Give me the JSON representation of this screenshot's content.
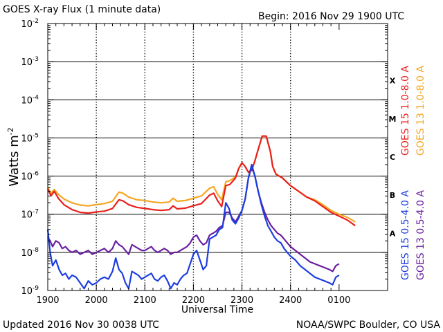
{
  "chart_data": {
    "type": "line",
    "title": "GOES X-ray Flux (1 minute data)",
    "begin_label": "Begin: 2016 Nov 29 1900 UTC",
    "xlabel": "Universal Time",
    "ylabel": "Watts m",
    "ylabel_superscript": "-2",
    "yscale": "log",
    "x_ticks": [
      "1900",
      "2000",
      "2100",
      "2200",
      "2300",
      "2400",
      "0100"
    ],
    "y_ticks": [
      {
        "base": "10",
        "exp": "-9"
      },
      {
        "base": "10",
        "exp": "-8"
      },
      {
        "base": "10",
        "exp": "-7"
      },
      {
        "base": "10",
        "exp": "-6"
      },
      {
        "base": "10",
        "exp": "-5"
      },
      {
        "base": "10",
        "exp": "-4"
      },
      {
        "base": "10",
        "exp": "-3"
      },
      {
        "base": "10",
        "exp": "-2"
      }
    ],
    "flare_classes": [
      "A",
      "B",
      "C",
      "M",
      "X"
    ],
    "x_unit_note": "x = minutes after 2016 Nov 29 1900 UTC",
    "ylim_log10": [
      -9,
      -2
    ],
    "series": [
      {
        "name": "GOES 15 1.0-8.0 A",
        "color": "#e8201c",
        "x": [
          0,
          4,
          8,
          13,
          20,
          30,
          40,
          50,
          60,
          70,
          80,
          88,
          93,
          100,
          110,
          120,
          130,
          140,
          150,
          155,
          160,
          170,
          180,
          190,
          200,
          205,
          210,
          215,
          220,
          225,
          230,
          232,
          236,
          240,
          244,
          248,
          252,
          256,
          260,
          265,
          270,
          275,
          278,
          282,
          286,
          290,
          300,
          310,
          320,
          330,
          340,
          350,
          360,
          370,
          380
        ],
        "y": [
          -6.34,
          -6.52,
          -6.4,
          -6.58,
          -6.75,
          -6.88,
          -6.95,
          -6.97,
          -6.94,
          -6.92,
          -6.85,
          -6.62,
          -6.65,
          -6.75,
          -6.82,
          -6.85,
          -6.88,
          -6.9,
          -6.88,
          -6.78,
          -6.86,
          -6.84,
          -6.78,
          -6.72,
          -6.5,
          -6.45,
          -6.65,
          -6.8,
          -6.25,
          -6.22,
          -6.1,
          -6.05,
          -5.8,
          -5.65,
          -5.75,
          -5.9,
          -5.85,
          -5.6,
          -5.3,
          -4.95,
          -4.95,
          -5.35,
          -5.75,
          -5.95,
          -6.0,
          -6.05,
          -6.25,
          -6.4,
          -6.55,
          -6.65,
          -6.8,
          -6.95,
          -7.05,
          -7.15,
          -7.3
        ]
      },
      {
        "name": "GOES 13 1.0-8.0 A",
        "color": "#f5a623",
        "x": [
          0,
          4,
          8,
          13,
          20,
          30,
          40,
          50,
          60,
          70,
          80,
          88,
          93,
          100,
          110,
          120,
          130,
          140,
          150,
          155,
          160,
          170,
          180,
          190,
          200,
          205,
          210,
          215,
          220,
          225,
          230,
          232,
          236,
          240,
          244,
          248,
          252,
          256,
          260,
          265,
          270,
          275,
          278,
          282,
          286,
          290,
          300,
          310,
          320,
          330,
          340,
          350,
          360,
          370,
          380
        ],
        "y": [
          -6.3,
          -6.45,
          -6.35,
          -6.48,
          -6.6,
          -6.7,
          -6.76,
          -6.78,
          -6.75,
          -6.72,
          -6.66,
          -6.42,
          -6.45,
          -6.55,
          -6.62,
          -6.64,
          -6.68,
          -6.7,
          -6.68,
          -6.58,
          -6.66,
          -6.64,
          -6.58,
          -6.52,
          -6.32,
          -6.28,
          -6.48,
          -6.62,
          -6.15,
          -6.12,
          -6.05,
          -6.02,
          -5.8,
          -5.65,
          -5.75,
          -5.9,
          -5.85,
          -5.6,
          -5.3,
          -4.95,
          -4.95,
          -5.35,
          -5.75,
          -5.95,
          -6.0,
          -6.05,
          -6.25,
          -6.4,
          -6.55,
          -6.62,
          -6.75,
          -6.9,
          -7.0,
          -7.08,
          -7.2
        ]
      },
      {
        "name": "GOES 15 0.5-4.0 A",
        "color": "#1c3ee0",
        "x": [
          0,
          3,
          6,
          10,
          14,
          18,
          22,
          26,
          30,
          35,
          40,
          45,
          50,
          55,
          60,
          65,
          70,
          75,
          80,
          84,
          88,
          92,
          96,
          100,
          104,
          108,
          112,
          116,
          120,
          124,
          128,
          132,
          136,
          140,
          144,
          148,
          152,
          156,
          160,
          164,
          168,
          172,
          176,
          180,
          184,
          188,
          192,
          196,
          200,
          204,
          208,
          212,
          216,
          220,
          224,
          228,
          232,
          236,
          240,
          244,
          248,
          252,
          256,
          260,
          264,
          268,
          272,
          276,
          280,
          284,
          288,
          292,
          296,
          300,
          306,
          312,
          318,
          324,
          330,
          336,
          342,
          348,
          352,
          356,
          360
        ],
        "y": [
          -7.4,
          -8.0,
          -8.35,
          -8.2,
          -8.45,
          -8.6,
          -8.55,
          -8.7,
          -8.6,
          -8.65,
          -8.8,
          -8.95,
          -8.75,
          -8.85,
          -8.8,
          -8.7,
          -8.65,
          -8.7,
          -8.5,
          -8.15,
          -8.45,
          -8.55,
          -8.8,
          -8.95,
          -8.5,
          -8.55,
          -8.6,
          -8.7,
          -8.65,
          -8.6,
          -8.55,
          -8.7,
          -8.75,
          -8.65,
          -8.6,
          -8.75,
          -8.95,
          -8.8,
          -8.85,
          -8.7,
          -8.6,
          -8.55,
          -8.3,
          -8.05,
          -7.95,
          -8.2,
          -8.45,
          -8.35,
          -7.65,
          -7.6,
          -7.55,
          -7.4,
          -7.35,
          -6.7,
          -6.85,
          -7.15,
          -7.25,
          -7.1,
          -6.9,
          -6.6,
          -6.05,
          -5.7,
          -6.0,
          -6.4,
          -6.75,
          -7.05,
          -7.3,
          -7.45,
          -7.6,
          -7.7,
          -7.75,
          -7.9,
          -8.0,
          -8.1,
          -8.2,
          -8.35,
          -8.45,
          -8.55,
          -8.65,
          -8.7,
          -8.75,
          -8.8,
          -8.85,
          -8.65,
          -8.6
        ]
      },
      {
        "name": "GOES 13 0.5-4.0 A",
        "color": "#6a1fa0",
        "x": [
          0,
          3,
          6,
          10,
          14,
          18,
          22,
          26,
          30,
          35,
          40,
          45,
          50,
          55,
          60,
          65,
          70,
          75,
          80,
          84,
          88,
          92,
          96,
          100,
          104,
          108,
          112,
          116,
          120,
          124,
          128,
          132,
          136,
          140,
          144,
          148,
          152,
          156,
          160,
          164,
          168,
          172,
          176,
          180,
          184,
          188,
          192,
          196,
          200,
          204,
          208,
          212,
          216,
          220,
          224,
          228,
          232,
          236,
          240,
          244,
          248,
          252,
          256,
          260,
          264,
          268,
          272,
          276,
          280,
          284,
          288,
          292,
          296,
          300,
          306,
          312,
          318,
          324,
          330,
          336,
          342,
          348,
          352,
          356,
          360
        ],
        "y": [
          -7.6,
          -7.7,
          -7.85,
          -7.7,
          -7.75,
          -7.9,
          -7.85,
          -7.95,
          -8.0,
          -7.95,
          -8.05,
          -8.0,
          -7.95,
          -8.05,
          -8.0,
          -7.95,
          -7.9,
          -8.0,
          -7.9,
          -7.7,
          -7.8,
          -7.85,
          -7.95,
          -8.05,
          -7.8,
          -7.85,
          -7.9,
          -7.95,
          -7.95,
          -7.9,
          -7.85,
          -7.95,
          -8.0,
          -7.95,
          -7.9,
          -7.95,
          -8.05,
          -8.0,
          -8.0,
          -7.95,
          -7.9,
          -7.85,
          -7.75,
          -7.6,
          -7.55,
          -7.7,
          -7.8,
          -7.75,
          -7.55,
          -7.5,
          -7.45,
          -7.35,
          -7.3,
          -6.95,
          -6.95,
          -7.1,
          -7.2,
          -7.05,
          -6.9,
          -6.6,
          -6.05,
          -5.75,
          -6.0,
          -6.4,
          -6.7,
          -6.95,
          -7.15,
          -7.3,
          -7.4,
          -7.5,
          -7.55,
          -7.65,
          -7.75,
          -7.85,
          -7.95,
          -8.05,
          -8.15,
          -8.25,
          -8.3,
          -8.35,
          -8.4,
          -8.45,
          -8.5,
          -8.35,
          -8.3
        ]
      }
    ],
    "updated": "Updated 2016 Nov 30 0038 UTC",
    "source": "NOAA/SWPC Boulder, CO USA"
  }
}
